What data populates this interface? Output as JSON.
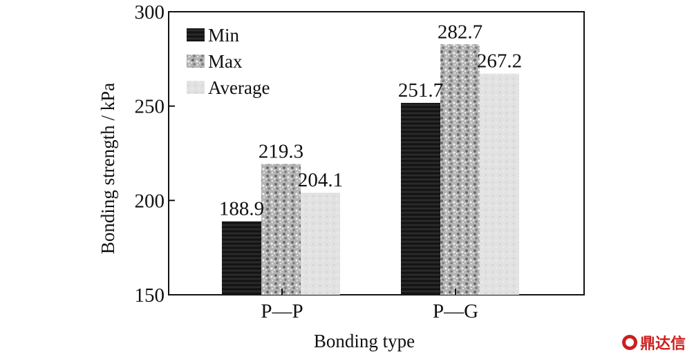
{
  "chart_data": {
    "type": "bar",
    "categories": [
      "P—P",
      "P—G"
    ],
    "series": [
      {
        "name": "Min",
        "values": [
          188.9,
          251.7
        ],
        "color": "#222222"
      },
      {
        "name": "Max",
        "values": [
          219.3,
          282.7
        ],
        "color": "#9a9a9a"
      },
      {
        "name": "Average",
        "values": [
          204.1,
          267.2
        ],
        "color": "#dedede"
      }
    ],
    "data_labels": [
      [
        "188.9",
        "251.7"
      ],
      [
        "219.3",
        "282.7"
      ],
      [
        "204.1",
        "267.2"
      ]
    ],
    "xlabel": "Bonding type",
    "ylabel": "Bonding strength / kPa",
    "ylim": [
      150,
      300
    ],
    "yticks": [
      150,
      200,
      250,
      300
    ],
    "grid": false,
    "legend_position": "top-left"
  },
  "watermark": {
    "text": "鼎达信",
    "logo_icon": "brand-logo-icon"
  }
}
